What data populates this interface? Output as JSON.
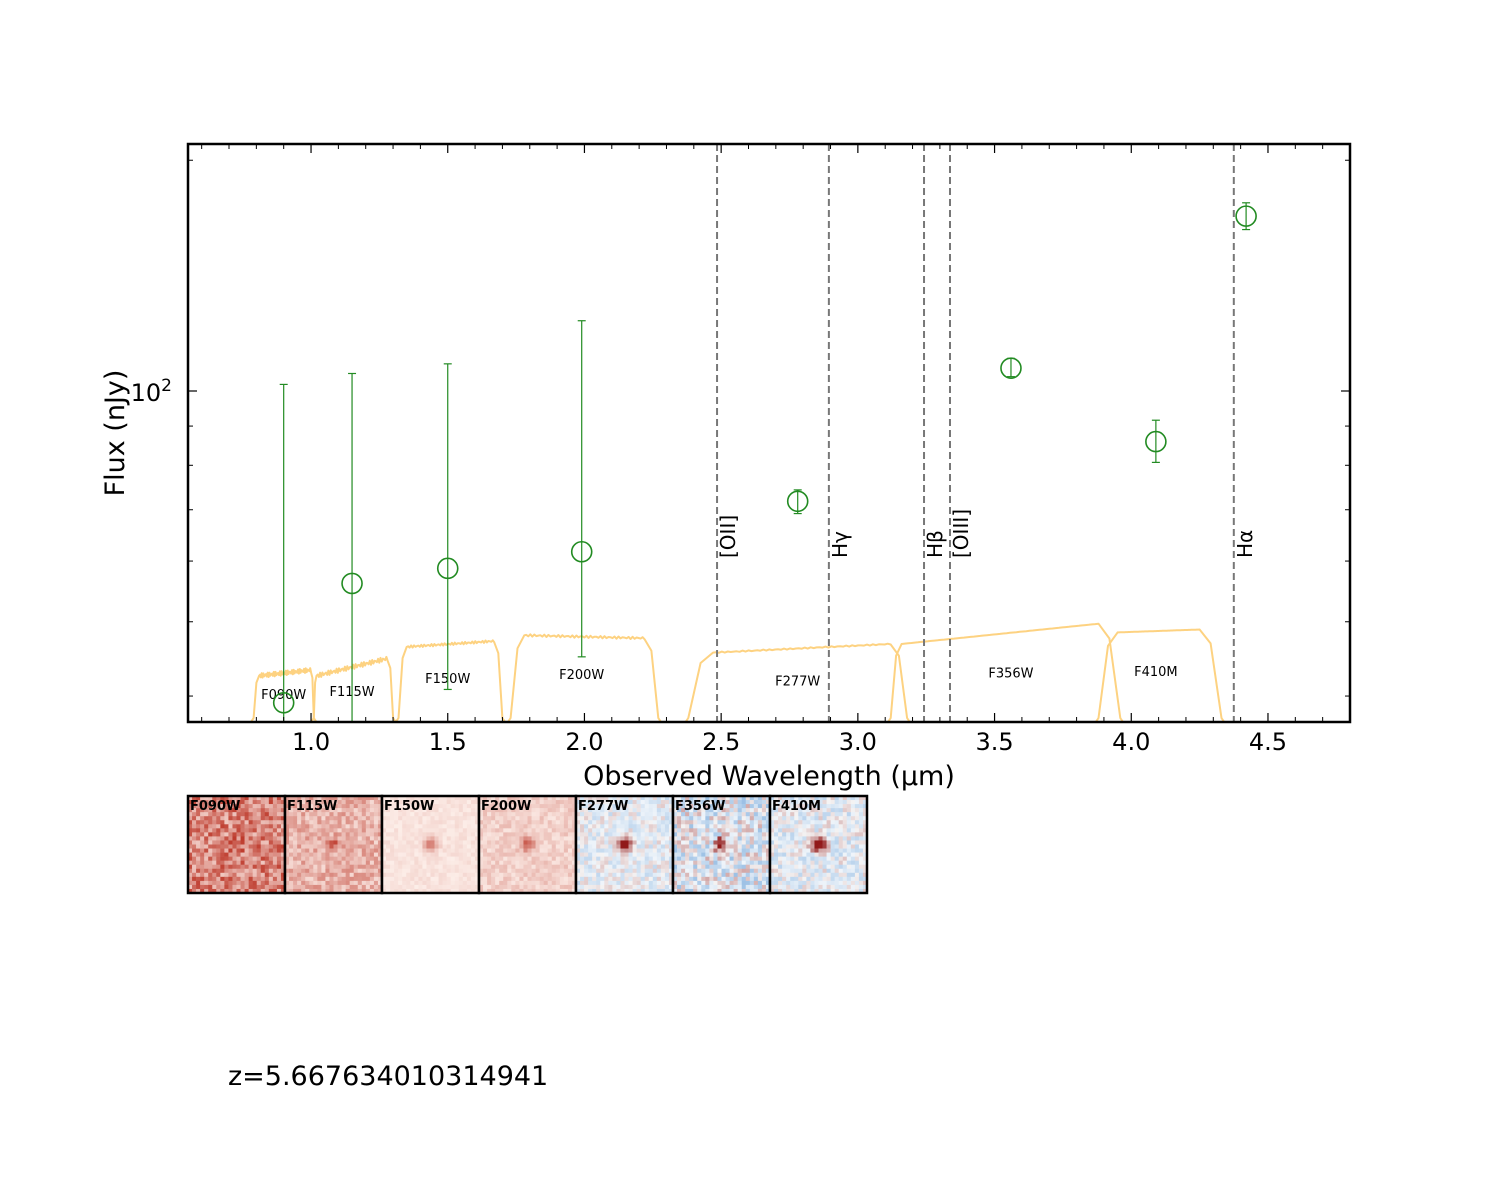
{
  "chart_data": {
    "type": "scatter",
    "title": "",
    "xlabel": "Observed Wavelength (μm)",
    "ylabel": "Flux (nJy)",
    "xlim": [
      0.55,
      4.8
    ],
    "ylim": [
      37,
      210
    ],
    "yscale": "log",
    "xticks": [
      1.0,
      1.5,
      2.0,
      2.5,
      3.0,
      3.5,
      4.0,
      4.5
    ],
    "xtick_labels": [
      "1.0",
      "1.5",
      "2.0",
      "2.5",
      "3.0",
      "3.5",
      "4.0",
      "4.5"
    ],
    "yticks": [
      100
    ],
    "ytick_labels_base": "10",
    "ytick_labels_exp": "2",
    "grid": false,
    "series": [
      {
        "marker": "open-circle",
        "color": "#228b22",
        "points": [
          {
            "x": 0.9,
            "y": 39.2,
            "err_low": 39.2,
            "err_high": 62.8
          },
          {
            "x": 1.15,
            "y": 56.1,
            "err_low": 23.3,
            "err_high": 49.3
          },
          {
            "x": 1.5,
            "y": 58.7,
            "err_low": 17.9,
            "err_high": 49.8
          },
          {
            "x": 1.99,
            "y": 61.7,
            "err_low": 16.7,
            "err_high": 61.8
          },
          {
            "x": 2.78,
            "y": 71.8,
            "err_low": 2.6,
            "err_high": 2.5
          },
          {
            "x": 3.56,
            "y": 107.1,
            "err_low": 2.7,
            "err_high": 3.2
          },
          {
            "x": 4.09,
            "y": 85.9,
            "err_low": 5.2,
            "err_high": 5.7
          },
          {
            "x": 4.42,
            "y": 169.1,
            "err_low": 6.7,
            "err_high": 6.9
          }
        ]
      }
    ],
    "emission_lines": [
      {
        "label": "[OII]",
        "x": 2.485
      },
      {
        "label": "Hγ",
        "x": 2.894
      },
      {
        "label": "Hβ",
        "x": 3.242
      },
      {
        "label": "[OIII]",
        "x": 3.337
      },
      {
        "label": "Hα",
        "x": 4.375
      }
    ],
    "filters": [
      {
        "name": "F090W",
        "x_label": 0.9,
        "rise": 0.79,
        "x1": 0.81,
        "x2": 1.0,
        "fall": 1.01,
        "h_left": 0.08,
        "h_right": 0.09,
        "ripple": 0.004
      },
      {
        "name": "F115W",
        "x_label": 1.15,
        "rise": 1.01,
        "x1": 1.02,
        "x2": 1.28,
        "fall": 1.3,
        "h_left": 0.08,
        "h_right": 0.11,
        "ripple": 0.004
      },
      {
        "name": "F150W",
        "x_label": 1.5,
        "rise": 1.32,
        "x1": 1.35,
        "x2": 1.67,
        "fall": 1.7,
        "h_left": 0.13,
        "h_right": 0.14,
        "ripple": 0.002
      },
      {
        "name": "F200W",
        "x_label": 1.99,
        "rise": 1.73,
        "x1": 1.78,
        "x2": 2.22,
        "fall": 2.27,
        "h_left": 0.15,
        "h_right": 0.145,
        "ripple": 0.002
      },
      {
        "name": "F277W",
        "x_label": 2.78,
        "rise": 2.38,
        "x1": 2.47,
        "x2": 3.12,
        "fall": 3.18,
        "h_left": 0.12,
        "h_right": 0.135,
        "ripple": 0.001
      },
      {
        "name": "F356W",
        "x_label": 3.56,
        "rise": 3.12,
        "x1": 3.16,
        "x2": 3.88,
        "fall": 3.96,
        "h_left": 0.135,
        "h_right": 0.17,
        "ripple": 0.0
      },
      {
        "name": "F410M",
        "x_label": 4.09,
        "rise": 3.88,
        "x1": 3.95,
        "x2": 4.25,
        "fall": 4.33,
        "h_left": 0.155,
        "h_right": 0.16,
        "ripple": 0.0
      }
    ],
    "filter_color": "#fdd281",
    "cutouts": [
      {
        "label": "F090W",
        "colormap": "red",
        "intensity": 0.75,
        "peak": 0.3
      },
      {
        "label": "F115W",
        "colormap": "red",
        "intensity": 0.45,
        "peak": 0.4
      },
      {
        "label": "F150W",
        "colormap": "red",
        "intensity": 0.12,
        "peak": 0.55
      },
      {
        "label": "F200W",
        "colormap": "red",
        "intensity": 0.25,
        "peak": 0.55
      },
      {
        "label": "F277W",
        "colormap": "blue",
        "intensity": 0.3,
        "peak": 0.9
      },
      {
        "label": "F356W",
        "colormap": "blue",
        "intensity": 0.55,
        "peak": 0.9
      },
      {
        "label": "F410M",
        "colormap": "blue",
        "intensity": 0.35,
        "peak": 1.0
      }
    ],
    "redshift_text": "z=5.667634010314941"
  }
}
